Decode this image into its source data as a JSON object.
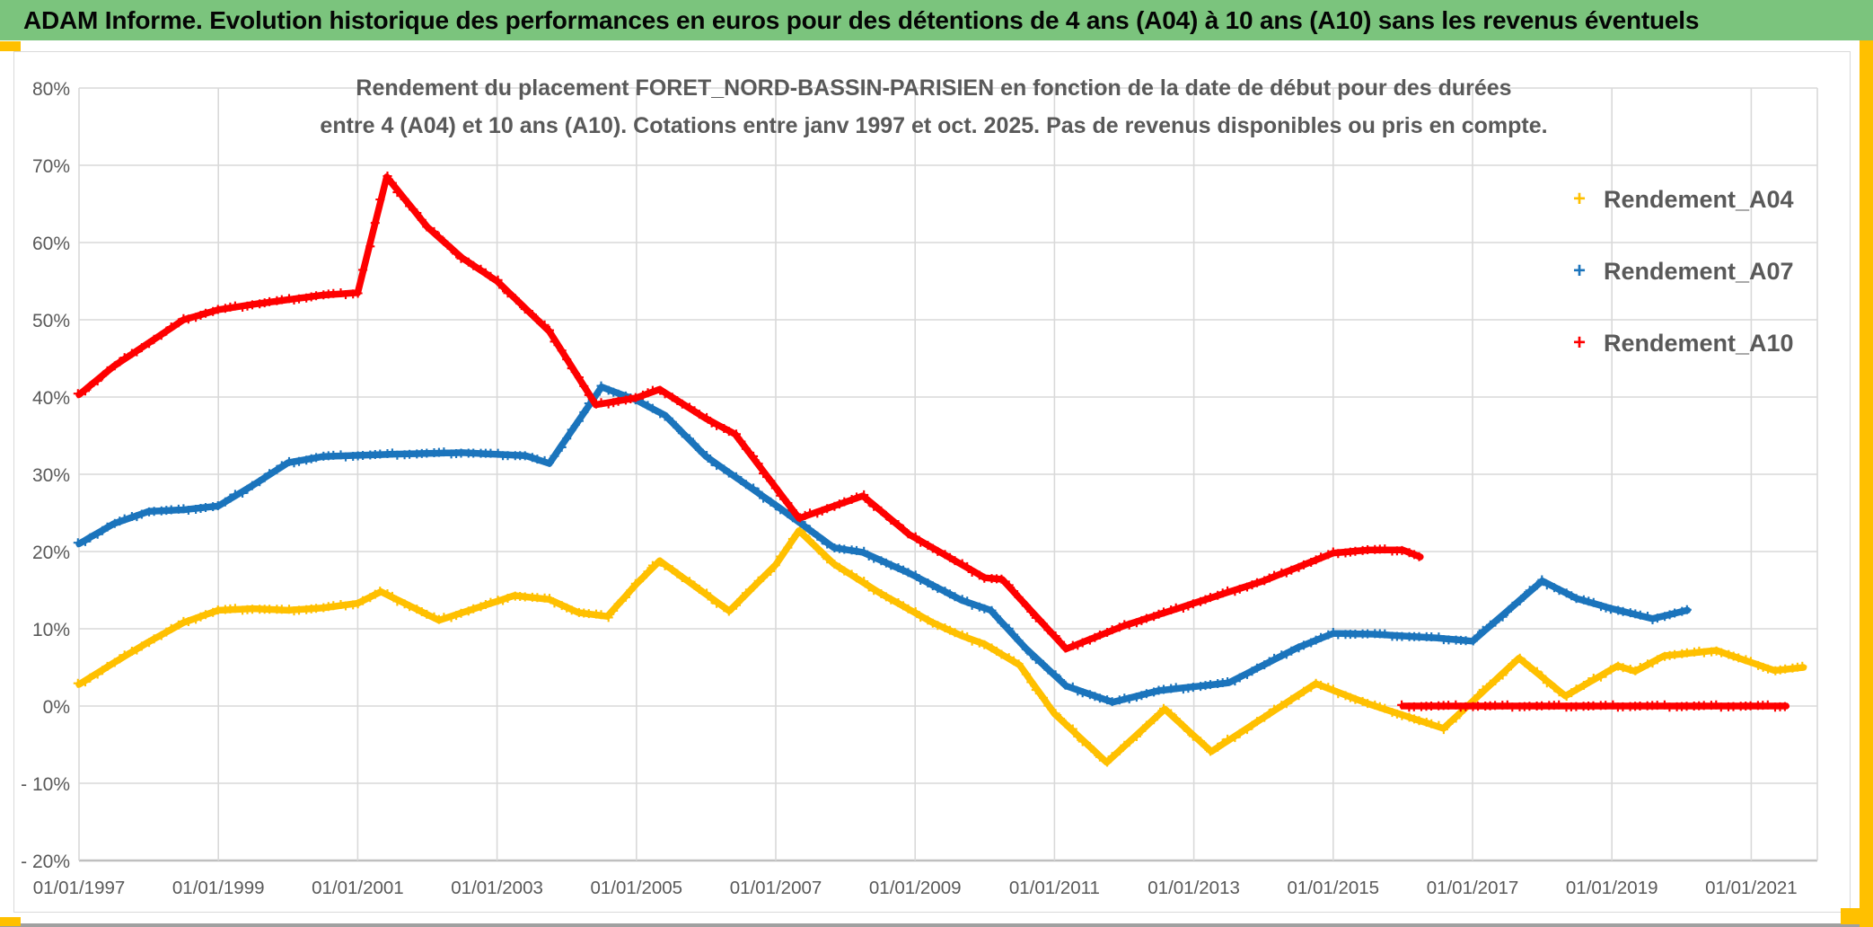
{
  "header": {
    "title": "ADAM Informe. Evolution historique des performances en euros pour des détentions de 4 ans (A04) à 10 ans (A10) sans les revenus éventuels",
    "background_color": "#7BC47D",
    "text_color": "#000000"
  },
  "accents": {
    "color": "#FFC000"
  },
  "footer": {
    "bar_color": "#A0A0A0"
  },
  "chart_data": {
    "type": "line",
    "title": "Rendement du placement FORET_NORD-BASSIN-PARISIEN en fonction de la date de début pour des durées entre 4 (A04) et 10 ans (A10). Cotations entre janv 1997 et oct. 2025. Pas de revenus disponibles ou pris en compte.",
    "title_lines": [
      "Rendement du placement FORET_NORD-BASSIN-PARISIEN en fonction de la date de début pour des durées",
      "entre 4 (A04) et 10 ans (A10). Cotations entre janv 1997 et oct. 2025. Pas de revenus disponibles ou pris en compte."
    ],
    "title_color": "#595959",
    "axis_text_color": "#595959",
    "gridline_color": "#D9D9D9",
    "grid": true,
    "legend_position": "right-inside",
    "legend_marker": "+",
    "marker_style": "plus",
    "x_axis": {
      "years": [
        1997,
        1999,
        2001,
        2003,
        2005,
        2007,
        2009,
        2011,
        2013,
        2015,
        2017,
        2019,
        2021
      ],
      "tick_labels": [
        "01/01/1997",
        "01/01/1999",
        "01/01/2001",
        "01/01/2003",
        "01/01/2005",
        "01/01/2007",
        "01/01/2009",
        "01/01/2011",
        "01/01/2013",
        "01/01/2015",
        "01/01/2017",
        "01/01/2019",
        "01/01/2021"
      ],
      "range": [
        "1997-01",
        "2021-12"
      ]
    },
    "y_axis": {
      "ticks": [
        80,
        70,
        60,
        50,
        40,
        30,
        20,
        10,
        0,
        -10,
        -20
      ],
      "tick_labels": [
        "80%",
        "70%",
        "60%",
        "50%",
        "40%",
        "30%",
        "20%",
        "10%",
        "0%",
        "- 10%",
        "- 20%"
      ],
      "min": -20,
      "max": 80,
      "unit": "%"
    },
    "series": [
      {
        "name": "Rendement_A04",
        "color": "#FFC000",
        "unit": "%",
        "segments": [
          [
            [
              "1997-01",
              2.8
            ],
            [
              "1997-07",
              5.6
            ],
            [
              "1998-01",
              8.3
            ],
            [
              "1998-07",
              10.8
            ],
            [
              "1999-01",
              12.4
            ],
            [
              "1999-07",
              12.6
            ],
            [
              "2000-01",
              12.4
            ],
            [
              "2000-07",
              12.7
            ],
            [
              "2001-01",
              13.3
            ],
            [
              "2001-05",
              14.8
            ],
            [
              "2002-03",
              11.1
            ],
            [
              "2003-04",
              14.3
            ],
            [
              "2003-10",
              13.8
            ],
            [
              "2004-03",
              12.1
            ],
            [
              "2004-08",
              11.6
            ],
            [
              "2005-01",
              15.8
            ],
            [
              "2005-05",
              18.8
            ],
            [
              "2006-05",
              12.3
            ],
            [
              "2007-01",
              18.3
            ],
            [
              "2007-05",
              22.7
            ],
            [
              "2007-11",
              18.4
            ],
            [
              "2008-07",
              14.6
            ],
            [
              "2009-04",
              10.8
            ],
            [
              "2009-09",
              9.1
            ],
            [
              "2010-01",
              8.0
            ],
            [
              "2010-07",
              5.3
            ],
            [
              "2011-01",
              -1.0
            ],
            [
              "2011-10",
              -7.3
            ],
            [
              "2012-08",
              -0.4
            ],
            [
              "2013-04",
              -5.9
            ],
            [
              "2014-10",
              2.9
            ],
            [
              "2015-07",
              0.3
            ],
            [
              "2016-08",
              -2.9
            ],
            [
              "2017-09",
              6.2
            ],
            [
              "2018-05",
              1.3
            ],
            [
              "2019-02",
              5.2
            ],
            [
              "2019-05",
              4.5
            ],
            [
              "2019-10",
              6.5
            ],
            [
              "2020-07",
              7.2
            ],
            [
              "2021-05",
              4.6
            ],
            [
              "2021-10",
              5.0
            ]
          ]
        ]
      },
      {
        "name": "Rendement_A07",
        "color": "#1B74BC",
        "unit": "%",
        "segments": [
          [
            [
              "1997-01",
              21.0
            ],
            [
              "1997-07",
              23.6
            ],
            [
              "1998-01",
              25.2
            ],
            [
              "1998-07",
              25.4
            ],
            [
              "1999-01",
              25.9
            ],
            [
              "1999-07",
              28.6
            ],
            [
              "2000-01",
              31.5
            ],
            [
              "2000-07",
              32.3
            ],
            [
              "2001-07",
              32.6
            ],
            [
              "2002-07",
              32.8
            ],
            [
              "2003-06",
              32.4
            ],
            [
              "2003-10",
              31.4
            ],
            [
              "2004-07",
              41.3
            ],
            [
              "2005-01",
              39.6
            ],
            [
              "2005-06",
              37.6
            ],
            [
              "2006-01",
              32.3
            ],
            [
              "2007-01",
              26.0
            ],
            [
              "2007-11",
              20.5
            ],
            [
              "2008-04",
              19.9
            ],
            [
              "2008-12",
              17.2
            ],
            [
              "2009-09",
              13.7
            ],
            [
              "2010-02",
              12.4
            ],
            [
              "2010-08",
              7.5
            ],
            [
              "2011-03",
              2.6
            ],
            [
              "2011-11",
              0.5
            ],
            [
              "2012-07",
              2.0
            ],
            [
              "2013-07",
              3.0
            ],
            [
              "2014-07",
              7.6
            ],
            [
              "2015-01",
              9.4
            ],
            [
              "2015-08",
              9.3
            ],
            [
              "2016-07",
              8.8
            ],
            [
              "2017-01",
              8.4
            ],
            [
              "2017-07",
              12.3
            ],
            [
              "2018-01",
              16.2
            ],
            [
              "2018-07",
              13.9
            ],
            [
              "2019-01",
              12.6
            ],
            [
              "2019-08",
              11.3
            ],
            [
              "2020-02",
              12.4
            ]
          ]
        ]
      },
      {
        "name": "Rendement_A10",
        "color": "#FE0000",
        "unit": "%",
        "segments": [
          [
            [
              "1997-01",
              40.3
            ],
            [
              "1997-07",
              44.0
            ],
            [
              "1998-01",
              47.0
            ],
            [
              "1998-07",
              50.0
            ],
            [
              "1999-01",
              51.3
            ],
            [
              "1999-07",
              52.0
            ],
            [
              "2000-01",
              52.6
            ],
            [
              "2000-07",
              53.2
            ],
            [
              "2001-01",
              53.5
            ],
            [
              "2001-06",
              68.5
            ],
            [
              "2002-01",
              62.0
            ],
            [
              "2002-07",
              58.0
            ],
            [
              "2003-01",
              55.0
            ],
            [
              "2003-10",
              48.5
            ],
            [
              "2004-06",
              39.0
            ],
            [
              "2005-01",
              39.9
            ],
            [
              "2005-05",
              41.0
            ],
            [
              "2006-01",
              37.2
            ],
            [
              "2006-06",
              35.2
            ],
            [
              "2007-05",
              24.3
            ],
            [
              "2008-04",
              27.2
            ],
            [
              "2008-12",
              22.2
            ],
            [
              "2010-01",
              16.6
            ],
            [
              "2010-04",
              16.4
            ],
            [
              "2011-03",
              7.4
            ],
            [
              "2012-01",
              10.4
            ],
            [
              "2013-01",
              13.3
            ],
            [
              "2014-01",
              16.2
            ],
            [
              "2015-01",
              19.8
            ],
            [
              "2015-07",
              20.2
            ],
            [
              "2016-01",
              20.2
            ],
            [
              "2016-04",
              19.3
            ]
          ],
          [
            [
              "2016-01",
              0.0
            ],
            [
              "2021-07",
              0.0
            ]
          ]
        ]
      }
    ]
  }
}
